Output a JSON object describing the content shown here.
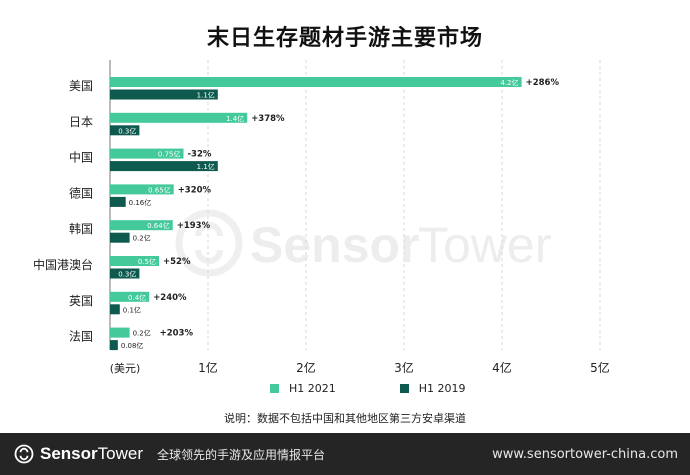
{
  "page_title": "末日生存题材手游主要市场",
  "colors": {
    "h1_2021": "#43c99a",
    "h1_2019": "#0e5a4e",
    "grid": "#d9d9d9",
    "footer_bg": "#252525"
  },
  "chart_data": {
    "type": "bar",
    "orientation": "horizontal",
    "title": "末日生存题材手游主要市场",
    "categories": [
      "美国",
      "日本",
      "中国",
      "德国",
      "韩国",
      "中国港澳台",
      "英国",
      "法国"
    ],
    "series": [
      {
        "name": "H1 2021",
        "values": [
          4.2,
          1.4,
          0.75,
          0.65,
          0.64,
          0.5,
          0.4,
          0.2
        ],
        "value_labels": [
          "4.2亿",
          "1.4亿",
          "0.75亿",
          "0.65亿",
          "0.64亿",
          "0.5亿",
          "0.4亿",
          "0.2亿"
        ],
        "growth_labels": [
          "+286%",
          "+378%",
          "-32%",
          "+320%",
          "+193%",
          "+52%",
          "+240%",
          "+203%"
        ]
      },
      {
        "name": "H1 2019",
        "values": [
          1.1,
          0.3,
          1.1,
          0.16,
          0.2,
          0.3,
          0.1,
          0.08
        ],
        "value_labels": [
          "1.1亿",
          "0.3亿",
          "1.1亿",
          "0.16亿",
          "0.2亿",
          "0.3亿",
          "0.1亿",
          "0.08亿"
        ]
      }
    ],
    "x_unit_label": "(美元)",
    "x_ticks": [
      1,
      2,
      3,
      4,
      5
    ],
    "x_tick_labels": [
      "1亿",
      "2亿",
      "3亿",
      "4亿",
      "5亿"
    ],
    "xlim": [
      0,
      5
    ],
    "grid": "vertical dashed",
    "legend": "bottom"
  },
  "watermark": {
    "text_bold": "Sensor",
    "text_light": "Tower"
  },
  "legend": [
    {
      "label": "H1 2021",
      "color": "#43c99a"
    },
    {
      "label": "H1 2019",
      "color": "#0e5a4e"
    }
  ],
  "note": "说明：数据不包括中国和其他地区第三方安卓渠道",
  "footer": {
    "brand_bold": "Sensor",
    "brand_light": "Tower",
    "tagline": "全球领先的手游及应用情报平台",
    "url": "www.sensortower-china.com"
  }
}
